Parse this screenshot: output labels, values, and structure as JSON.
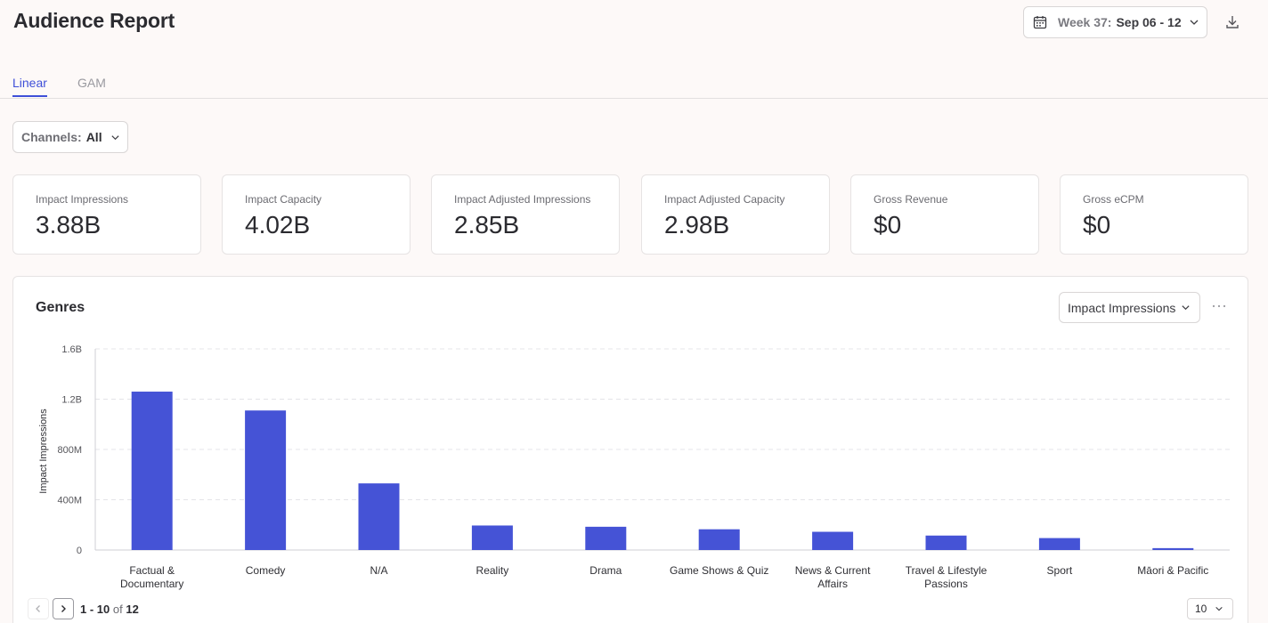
{
  "header": {
    "title": "Audience Report",
    "week_prefix": "Week 37:",
    "week_value": "Sep 06 - 12"
  },
  "tabs": [
    {
      "label": "Linear",
      "active": true
    },
    {
      "label": "GAM",
      "active": false
    }
  ],
  "filters": {
    "channels_label": "Channels:",
    "channels_value": "All"
  },
  "cards": [
    {
      "label": "Impact Impressions",
      "value": "3.88B"
    },
    {
      "label": "Impact Capacity",
      "value": "4.02B"
    },
    {
      "label": "Impact Adjusted Impressions",
      "value": "2.85B"
    },
    {
      "label": "Impact Adjusted Capacity",
      "value": "2.98B"
    },
    {
      "label": "Gross Revenue",
      "value": "$0"
    },
    {
      "label": "Gross eCPM",
      "value": "$0"
    }
  ],
  "genres_panel": {
    "title": "Genres",
    "metric": "Impact Impressions"
  },
  "chart_data": {
    "type": "bar",
    "ylabel": "Impact Impressions",
    "ylim": [
      0,
      1600000000
    ],
    "y_ticks": [
      0,
      400000000,
      800000000,
      1200000000,
      1600000000
    ],
    "y_tick_labels": [
      "0",
      "400M",
      "800M",
      "1.2B",
      "1.6B"
    ],
    "grid": true,
    "categories": [
      [
        "Factual &",
        "Documentary"
      ],
      [
        "Comedy"
      ],
      [
        "N/A"
      ],
      [
        "Reality"
      ],
      [
        "Drama"
      ],
      [
        "Game Shows & Quiz"
      ],
      [
        "News & Current",
        "Affairs"
      ],
      [
        "Travel & Lifestyle",
        "Passions"
      ],
      [
        "Sport"
      ],
      [
        "Māori & Pacific"
      ]
    ],
    "values": [
      1260000000,
      1110000000,
      530000000,
      195000000,
      185000000,
      165000000,
      145000000,
      115000000,
      95000000,
      15000000
    ],
    "bar_color": "#4553d6"
  },
  "pagination": {
    "range": "1 - 10",
    "of_label": "of",
    "total": "12",
    "page_size": "10"
  },
  "colors": {
    "accent": "#3f4fd8",
    "bar": "#4553d6"
  }
}
